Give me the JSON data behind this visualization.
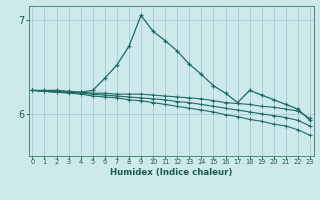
{
  "xlabel": "Humidex (Indice chaleur)",
  "ylabel": "",
  "bg_color": "#cee9eb",
  "grid_color": "#aacfd2",
  "line_color": "#1e6b62",
  "x_ticks": [
    0,
    1,
    2,
    3,
    4,
    5,
    6,
    7,
    8,
    9,
    10,
    11,
    12,
    13,
    14,
    15,
    16,
    17,
    18,
    19,
    20,
    21,
    22,
    23
  ],
  "y_ticks": [
    6,
    7
  ],
  "ylim": [
    5.55,
    7.15
  ],
  "xlim": [
    -0.3,
    23.3
  ],
  "series": [
    [
      6.25,
      6.25,
      6.25,
      6.24,
      6.23,
      6.25,
      6.38,
      6.52,
      6.72,
      7.05,
      6.88,
      6.78,
      6.67,
      6.53,
      6.42,
      6.3,
      6.22,
      6.12,
      6.25,
      6.2,
      6.15,
      6.1,
      6.05,
      5.93
    ],
    [
      6.25,
      6.24,
      6.24,
      6.23,
      6.23,
      6.22,
      6.22,
      6.21,
      6.21,
      6.21,
      6.2,
      6.19,
      6.18,
      6.17,
      6.16,
      6.14,
      6.12,
      6.11,
      6.1,
      6.08,
      6.07,
      6.05,
      6.03,
      5.95
    ],
    [
      6.25,
      6.24,
      6.23,
      6.23,
      6.22,
      6.21,
      6.2,
      6.19,
      6.18,
      6.17,
      6.16,
      6.15,
      6.13,
      6.12,
      6.1,
      6.08,
      6.06,
      6.04,
      6.02,
      6.0,
      5.98,
      5.96,
      5.93,
      5.87
    ],
    [
      6.25,
      6.24,
      6.23,
      6.22,
      6.21,
      6.19,
      6.18,
      6.17,
      6.15,
      6.14,
      6.12,
      6.1,
      6.08,
      6.06,
      6.04,
      6.02,
      5.99,
      5.97,
      5.94,
      5.92,
      5.89,
      5.87,
      5.83,
      5.77
    ]
  ]
}
